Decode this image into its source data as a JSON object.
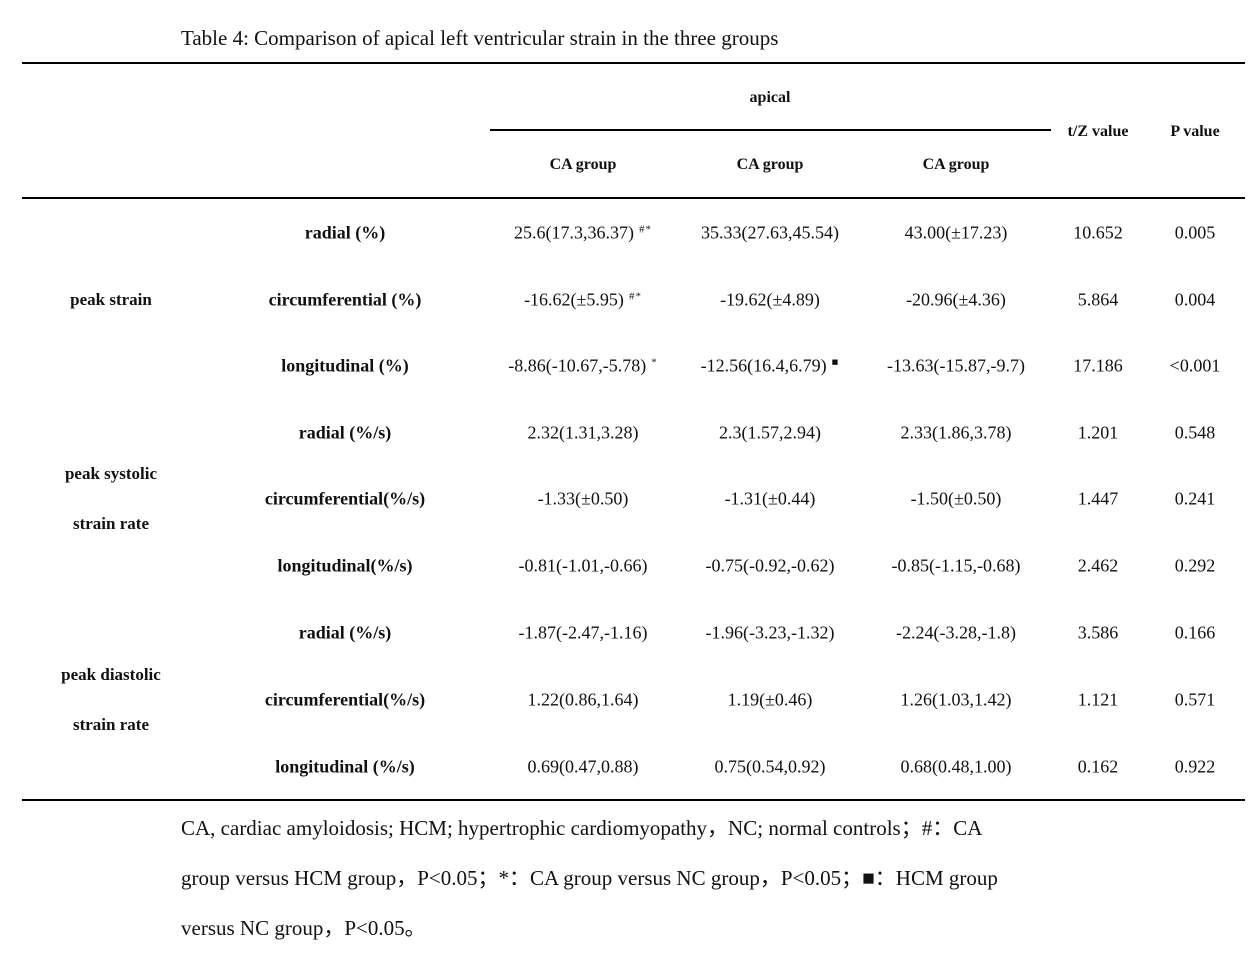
{
  "caption": "Table 4: Comparison of apical left ventricular strain in the three groups",
  "header": {
    "span_label": "apical",
    "groups": [
      "CA group",
      "CA group",
      "CA group"
    ],
    "stat_label": "t/Z value",
    "p_label": "P value"
  },
  "sections": [
    {
      "label_line1": "peak strain",
      "label_line2": "",
      "rows": [
        {
          "label": "radial (%)",
          "ca": "25.6(17.3,36.37)",
          "ca_mark": "#*",
          "hcm": "35.33(27.63,45.54)",
          "hcm_mark": "",
          "nc": "43.00(±17.23)",
          "stat": "10.652",
          "p": "0.005"
        },
        {
          "label": "circumferential (%)",
          "ca": "-16.62(±5.95)",
          "ca_mark": "#*",
          "hcm": "-19.62(±4.89)",
          "hcm_mark": "",
          "nc": "-20.96(±4.36)",
          "stat": "5.864",
          "p": "0.004"
        },
        {
          "label": "longitudinal (%)",
          "ca": "-8.86(-10.67,-5.78)",
          "ca_mark": "*",
          "hcm": "-12.56(16.4,6.79)",
          "hcm_mark": "■",
          "nc": "-13.63(-15.87,-9.7)",
          "stat": "17.186",
          "p": "<0.001"
        }
      ]
    },
    {
      "label_line1": "peak systolic",
      "label_line2": "strain rate",
      "rows": [
        {
          "label": "radial (%/s)",
          "ca": "2.32(1.31,3.28)",
          "ca_mark": "",
          "hcm": "2.3(1.57,2.94)",
          "hcm_mark": "",
          "nc": "2.33(1.86,3.78)",
          "stat": "1.201",
          "p": "0.548"
        },
        {
          "label": "circumferential(%/s)",
          "ca": "-1.33(±0.50)",
          "ca_mark": "",
          "hcm": "-1.31(±0.44)",
          "hcm_mark": "",
          "nc": "-1.50(±0.50)",
          "stat": "1.447",
          "p": "0.241"
        },
        {
          "label": "longitudinal(%/s)",
          "ca": "-0.81(-1.01,-0.66)",
          "ca_mark": "",
          "hcm": "-0.75(-0.92,-0.62)",
          "hcm_mark": "",
          "nc": "-0.85(-1.15,-0.68)",
          "stat": "2.462",
          "p": "0.292"
        }
      ]
    },
    {
      "label_line1": "peak diastolic",
      "label_line2": "strain rate",
      "rows": [
        {
          "label": "radial (%/s)",
          "ca": "-1.87(-2.47,-1.16)",
          "ca_mark": "",
          "hcm": "-1.96(-3.23,-1.32)",
          "hcm_mark": "",
          "nc": "-2.24(-3.28,-1.8)",
          "stat": "3.586",
          "p": "0.166"
        },
        {
          "label": "circumferential(%/s)",
          "ca": "1.22(0.86,1.64)",
          "ca_mark": "",
          "hcm": "1.19(±0.46)",
          "hcm_mark": "",
          "nc": "1.26(1.03,1.42)",
          "stat": "1.121",
          "p": "0.571"
        },
        {
          "label": "longitudinal (%/s)",
          "ca": "0.69(0.47,0.88)",
          "ca_mark": "",
          "hcm": "0.75(0.54,0.92)",
          "hcm_mark": "",
          "nc": "0.68(0.48,1.00)",
          "stat": "0.162",
          "p": "0.922"
        }
      ]
    }
  ],
  "footnote": {
    "line1": "CA, cardiac amyloidosis; HCM; hypertrophic cardiomyopathy，NC; normal controls；#：CA",
    "line2": "group versus HCM group，P<0.05；*：CA group versus NC group，P<0.05；■：HCM group",
    "line3": "versus NC group，P<0.05。"
  }
}
